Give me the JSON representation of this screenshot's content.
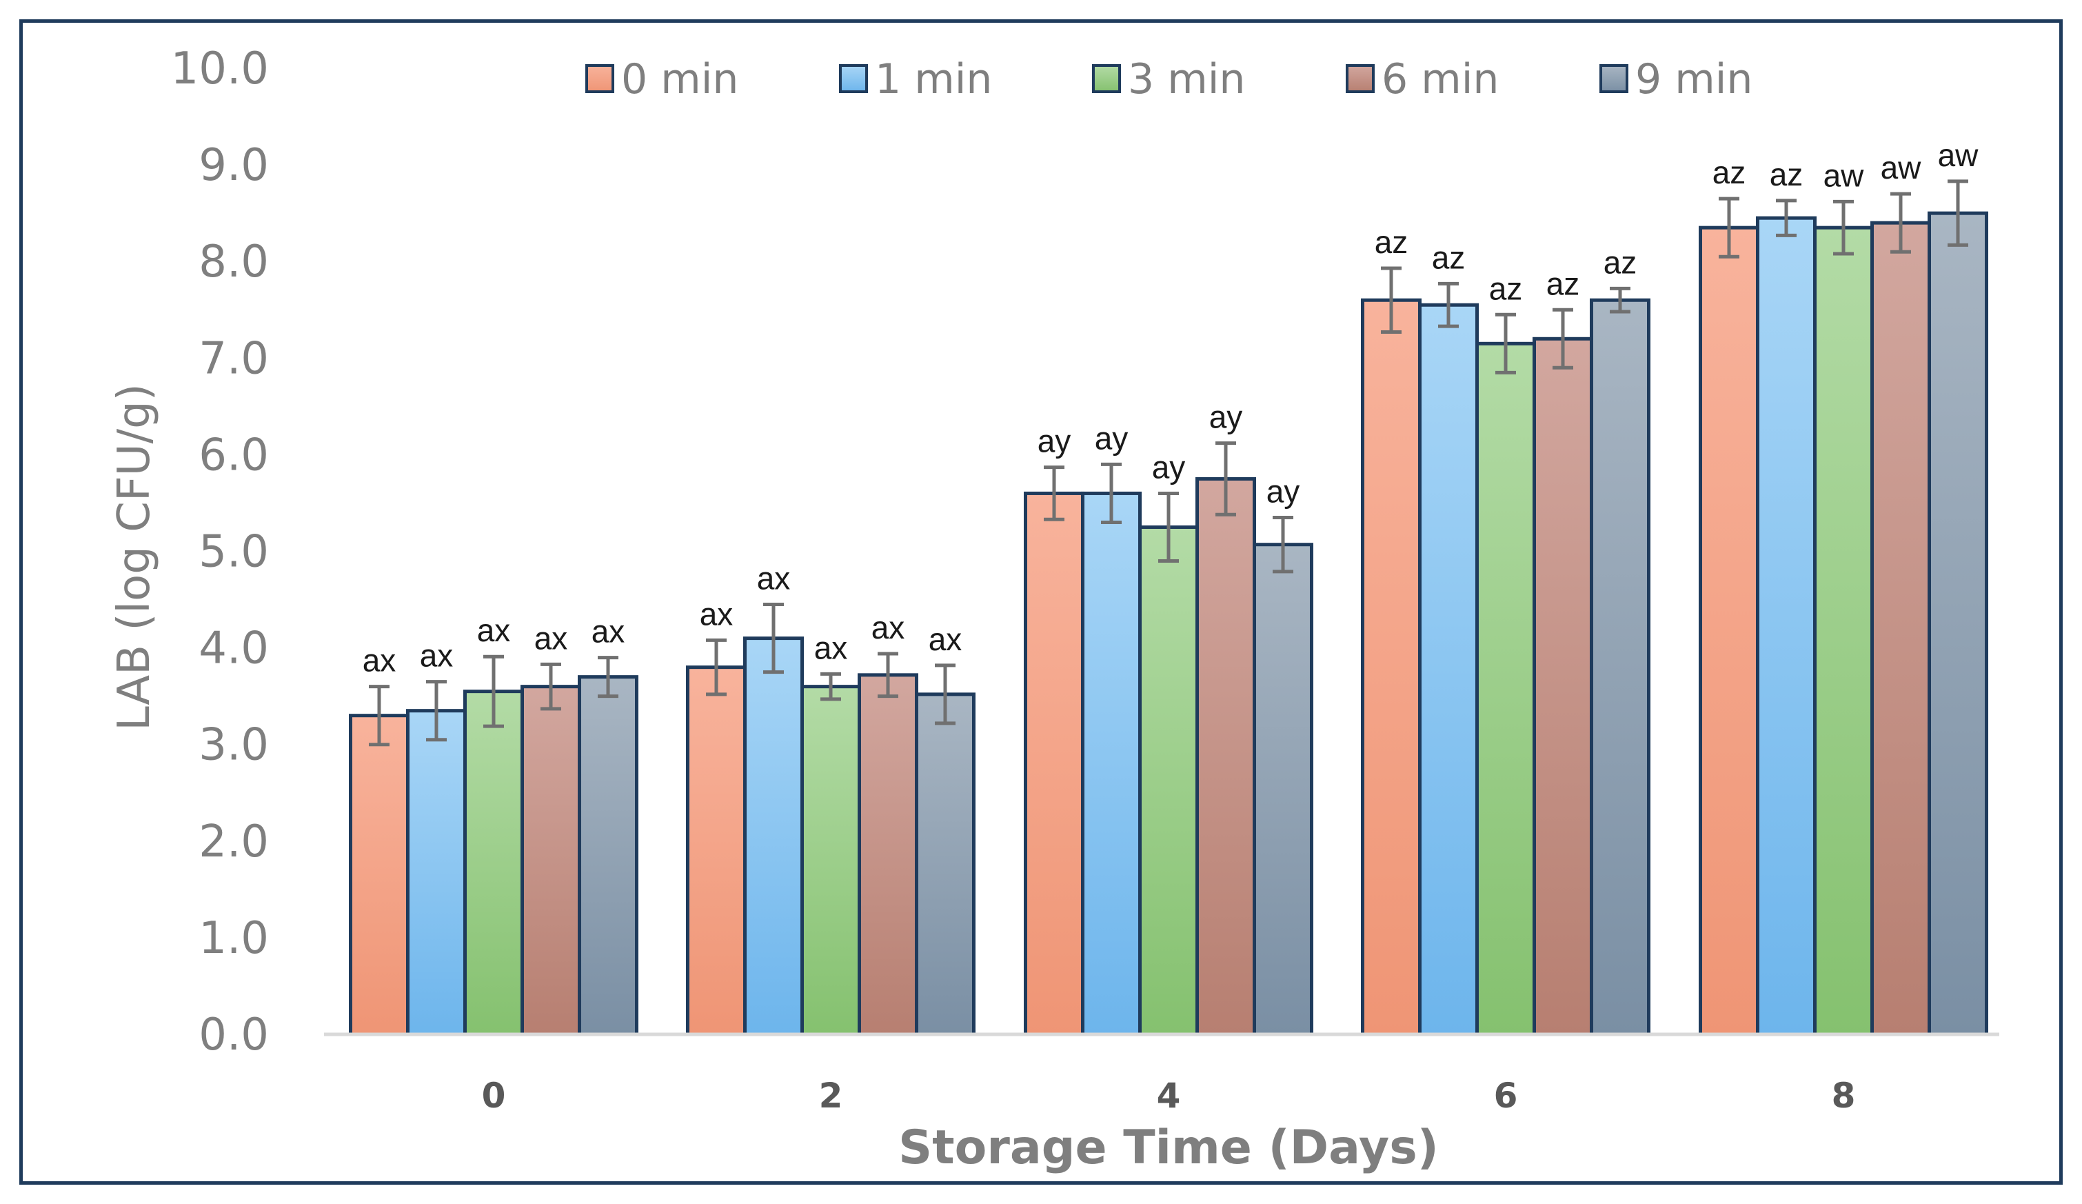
{
  "chart_data": {
    "type": "bar",
    "title": "",
    "xlabel": "Storage Time (Days)",
    "ylabel": "LAB (log CFU/g)",
    "ylim": [
      0,
      10
    ],
    "yticks": [
      "0.0",
      "1.0",
      "2.0",
      "3.0",
      "4.0",
      "5.0",
      "6.0",
      "7.0",
      "8.0",
      "9.0",
      "10.0"
    ],
    "categories": [
      "0",
      "2",
      "4",
      "6",
      "8"
    ],
    "legend_position": "top",
    "colors": {
      "0 min": [
        "#f8b39c",
        "#ef9575"
      ],
      "1 min": [
        "#a9d6f6",
        "#6db5ec"
      ],
      "3 min": [
        "#b3dba6",
        "#85c16f"
      ],
      "6 min": [
        "#d2a79f",
        "#b77f71"
      ],
      "9 min": [
        "#a9b6c3",
        "#7a8fa4"
      ],
      "outline": "#1f3b5c",
      "error_bar": "#707070",
      "axis": "#d9d9d9"
    },
    "series": [
      {
        "name": "0 min",
        "values": [
          3.3,
          3.8,
          5.6,
          7.6,
          8.35
        ],
        "errors": [
          0.3,
          0.28,
          0.27,
          0.33,
          0.3
        ],
        "labels": [
          "ax",
          "ax",
          "ay",
          "az",
          "az"
        ]
      },
      {
        "name": "1 min",
        "values": [
          3.35,
          4.1,
          5.6,
          7.55,
          8.45
        ],
        "errors": [
          0.3,
          0.35,
          0.3,
          0.22,
          0.18
        ],
        "labels": [
          "ax",
          "ax",
          "ay",
          "az",
          "az"
        ]
      },
      {
        "name": "3 min",
        "values": [
          3.55,
          3.6,
          5.25,
          7.15,
          8.35
        ],
        "errors": [
          0.36,
          0.13,
          0.35,
          0.3,
          0.27
        ],
        "labels": [
          "ax",
          "ax",
          "ay",
          "az",
          "aw"
        ]
      },
      {
        "name": "6 min",
        "values": [
          3.6,
          3.72,
          5.75,
          7.2,
          8.4
        ],
        "errors": [
          0.23,
          0.22,
          0.37,
          0.3,
          0.3
        ],
        "labels": [
          "ax",
          "ax",
          "ay",
          "az",
          "aw"
        ]
      },
      {
        "name": "9 min",
        "values": [
          3.7,
          3.52,
          5.07,
          7.6,
          8.5
        ],
        "errors": [
          0.2,
          0.3,
          0.28,
          0.12,
          0.33
        ],
        "labels": [
          "ax",
          "ax",
          "ay",
          "az",
          "aw"
        ]
      }
    ]
  }
}
